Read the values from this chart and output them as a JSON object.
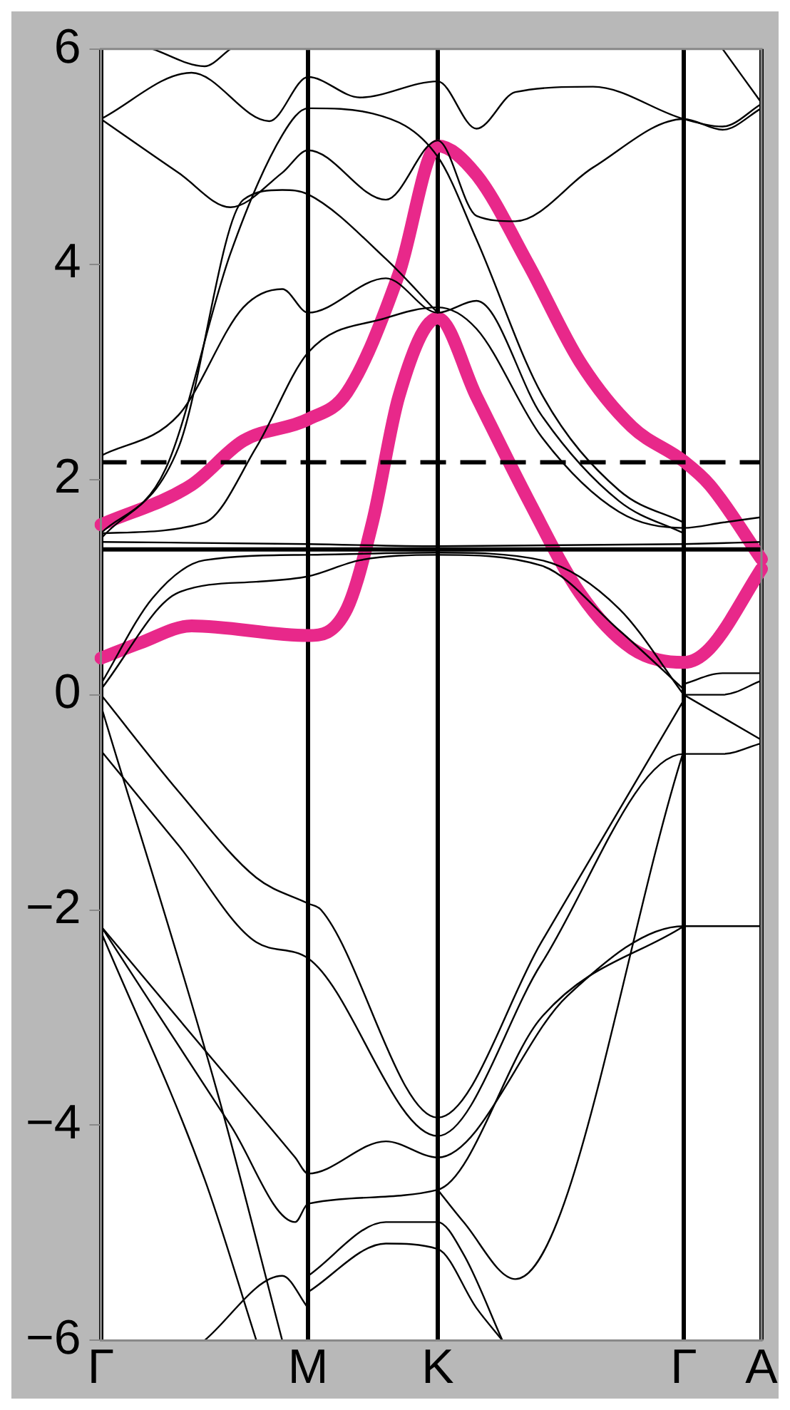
{
  "chart_data": {
    "type": "line",
    "categories": [
      "Γ",
      null,
      null,
      null,
      null,
      null,
      null,
      null,
      null,
      null,
      null,
      null,
      null,
      null,
      null,
      null,
      "M",
      null,
      null,
      null,
      null,
      null,
      null,
      null,
      null,
      null,
      "K",
      null,
      null,
      null,
      null,
      null,
      null,
      null,
      null,
      null,
      null,
      null,
      null,
      null,
      null,
      null,
      null,
      null,
      null,
      "Γ",
      null,
      null,
      null,
      null,
      null,
      "A"
    ],
    "ylim": [
      -6,
      6
    ],
    "yticks": [
      {
        "value": -6,
        "label": "−6"
      },
      {
        "value": -4,
        "label": "−4"
      },
      {
        "value": -2,
        "label": "−2"
      },
      0,
      2,
      4,
      6
    ],
    "grid": "x",
    "legend": false,
    "marker": "none",
    "line_style": "solid",
    "ref_lines": [
      {
        "axis": "y",
        "value": 2.16,
        "color": "#000000",
        "line_style": "dashed"
      },
      {
        "axis": "y",
        "value": 1.35,
        "color": "#000000",
        "line_style": "solid"
      }
    ],
    "series": [
      {
        "color": "#e8288a",
        "values": [
          1.58,
          null,
          null,
          null,
          null,
          null,
          null,
          1.95,
          null,
          null,
          null,
          2.36,
          null,
          null,
          null,
          null,
          2.56,
          null,
          null,
          2.81,
          null,
          null,
          null,
          3.91,
          null,
          null,
          5.1,
          null,
          null,
          4.83,
          null,
          null,
          null,
          4.0,
          null,
          null,
          null,
          3.09,
          null,
          null,
          null,
          2.49,
          null,
          null,
          null,
          2.17,
          null,
          1.95,
          null,
          null,
          null,
          1.26
        ]
      },
      {
        "color": "#e8288a",
        "values": [
          0.34,
          null,
          null,
          0.48,
          null,
          null,
          null,
          0.64,
          null,
          null,
          null,
          null,
          null,
          null,
          null,
          null,
          0.55,
          null,
          null,
          0.8,
          null,
          1.62,
          null,
          2.77,
          null,
          null,
          3.5,
          null,
          null,
          2.77,
          null,
          null,
          null,
          1.81,
          null,
          null,
          null,
          0.94,
          null,
          null,
          null,
          0.43,
          null,
          null,
          null,
          0.3,
          null,
          0.43,
          null,
          null,
          null,
          1.17
        ]
      },
      {
        "color": "#000000",
        "values": [
          5.35,
          null,
          null,
          null,
          null,
          null,
          4.85,
          null,
          null,
          null,
          4.53,
          null,
          null,
          null,
          4.85,
          null,
          5.06,
          null,
          null,
          null,
          null,
          null,
          4.6,
          null,
          null,
          null,
          5.15,
          null,
          null,
          4.45,
          null,
          null,
          4.4,
          null,
          null,
          null,
          null,
          null,
          4.9,
          null,
          null,
          null,
          null,
          null,
          null,
          5.35,
          null,
          null,
          5.25,
          null,
          null,
          5.45
        ]
      },
      {
        "color": "#000000",
        "values": [
          5.35,
          null,
          null,
          null,
          null,
          null,
          null,
          5.78,
          null,
          null,
          null,
          null,
          null,
          5.33,
          null,
          null,
          5.74,
          null,
          null,
          null,
          5.55,
          null,
          null,
          null,
          null,
          null,
          5.7,
          null,
          null,
          5.26,
          null,
          null,
          5.6,
          null,
          null,
          null,
          null,
          null,
          5.65,
          null,
          null,
          null,
          null,
          null,
          null,
          5.35,
          null,
          null,
          5.28,
          null,
          null,
          5.49
        ]
      },
      {
        "color": "#000000",
        "values": [
          null,
          null,
          null,
          null,
          6.0,
          null,
          null,
          null,
          5.84,
          null,
          6.0,
          null,
          null,
          null,
          null,
          null,
          null,
          null,
          null,
          null,
          null,
          null,
          null,
          null,
          null,
          null,
          null,
          null,
          null,
          null,
          null,
          null,
          null,
          null,
          null,
          null,
          null,
          null,
          null,
          null,
          null,
          null,
          null,
          null,
          null,
          null,
          null,
          null,
          null,
          null,
          null,
          null
        ]
      },
      {
        "color": "#000000",
        "values": [
          null,
          null,
          null,
          null,
          null,
          null,
          null,
          null,
          null,
          null,
          null,
          null,
          null,
          null,
          null,
          null,
          null,
          null,
          null,
          null,
          null,
          null,
          null,
          null,
          null,
          null,
          null,
          null,
          null,
          null,
          null,
          null,
          null,
          null,
          null,
          null,
          null,
          null,
          null,
          null,
          null,
          null,
          null,
          null,
          null,
          null,
          null,
          null,
          6.0,
          null,
          null,
          5.5
        ]
      },
      {
        "color": "#000000",
        "values": [
          2.22,
          null,
          null,
          null,
          null,
          null,
          2.6,
          null,
          null,
          null,
          null,
          3.6,
          null,
          null,
          3.77,
          null,
          3.55,
          null,
          null,
          null,
          null,
          null,
          3.87,
          null,
          null,
          null,
          3.55,
          null,
          null,
          3.66,
          null,
          null,
          null,
          null,
          2.6,
          null,
          null,
          null,
          null,
          null,
          1.8,
          null,
          null,
          null,
          null,
          1.5,
          null,
          null,
          null,
          null,
          null,
          null
        ]
      },
      {
        "color": "#000000",
        "values": [
          1.5,
          null,
          null,
          null,
          null,
          2.1,
          null,
          null,
          null,
          null,
          4.1,
          null,
          null,
          null,
          5.2,
          null,
          5.45,
          null,
          null,
          null,
          null,
          5.4,
          null,
          null,
          null,
          null,
          5.0,
          null,
          null,
          4.23,
          null,
          null,
          null,
          null,
          2.8,
          null,
          null,
          null,
          null,
          null,
          1.9,
          null,
          null,
          null,
          null,
          1.6,
          null,
          null,
          null,
          null,
          null,
          null
        ]
      },
      {
        "color": "#000000",
        "values": [
          1.45,
          null,
          null,
          null,
          null,
          null,
          2.3,
          null,
          null,
          null,
          null,
          4.6,
          null,
          null,
          4.69,
          null,
          4.65,
          null,
          null,
          null,
          null,
          null,
          4.05,
          null,
          null,
          null,
          3.55,
          null,
          null,
          null,
          null,
          null,
          null,
          null,
          null,
          null,
          null,
          null,
          null,
          null,
          null,
          null,
          null,
          null,
          null,
          null,
          null,
          null,
          null,
          null,
          null,
          null
        ]
      },
      {
        "color": "#000000",
        "values": [
          1.5,
          null,
          null,
          null,
          null,
          null,
          null,
          null,
          1.6,
          null,
          null,
          null,
          2.3,
          null,
          null,
          null,
          3.18,
          null,
          null,
          null,
          null,
          null,
          3.5,
          null,
          null,
          null,
          3.6,
          null,
          null,
          3.4,
          null,
          null,
          null,
          null,
          2.4,
          null,
          null,
          null,
          null,
          null,
          1.7,
          null,
          null,
          null,
          null,
          1.55,
          null,
          null,
          1.6,
          null,
          null,
          1.65
        ]
      },
      {
        "color": "#000000",
        "values": [
          1.42,
          null,
          null,
          null,
          null,
          null,
          null,
          null,
          null,
          null,
          null,
          null,
          null,
          null,
          null,
          null,
          1.4,
          null,
          null,
          null,
          null,
          null,
          null,
          null,
          null,
          null,
          1.38,
          null,
          null,
          null,
          null,
          null,
          null,
          null,
          null,
          null,
          null,
          null,
          null,
          null,
          null,
          null,
          null,
          null,
          null,
          1.4,
          null,
          null,
          null,
          null,
          null,
          1.42
        ]
      },
      {
        "color": "#000000",
        "values": [
          0.1,
          null,
          null,
          null,
          0.9,
          null,
          null,
          null,
          1.25,
          null,
          null,
          null,
          null,
          null,
          null,
          null,
          1.3,
          null,
          null,
          null,
          null,
          null,
          null,
          null,
          null,
          null,
          1.32,
          null,
          null,
          null,
          null,
          null,
          null,
          null,
          1.25,
          null,
          null,
          null,
          null,
          null,
          0.8,
          null,
          null,
          null,
          null,
          0.0,
          null,
          null,
          null,
          null,
          null,
          null
        ]
      },
      {
        "color": "#000000",
        "values": [
          0.05,
          null,
          null,
          null,
          null,
          null,
          0.95,
          null,
          null,
          null,
          null,
          null,
          1.05,
          null,
          null,
          null,
          1.1,
          null,
          null,
          null,
          1.25,
          null,
          null,
          null,
          null,
          null,
          1.3,
          null,
          null,
          null,
          null,
          null,
          null,
          null,
          1.2,
          null,
          null,
          null,
          null,
          null,
          0.6,
          null,
          null,
          null,
          null,
          0.05,
          null,
          null,
          null,
          null,
          null,
          null
        ]
      },
      {
        "color": "#000000",
        "values": [
          null,
          null,
          null,
          null,
          null,
          null,
          null,
          null,
          null,
          null,
          null,
          null,
          null,
          null,
          null,
          null,
          null,
          null,
          null,
          null,
          null,
          null,
          null,
          null,
          null,
          null,
          null,
          null,
          null,
          null,
          null,
          null,
          null,
          null,
          null,
          null,
          null,
          null,
          null,
          null,
          null,
          null,
          null,
          null,
          null,
          0.1,
          null,
          null,
          0.2,
          null,
          null,
          0.2
        ]
      },
      {
        "color": "#000000",
        "values": [
          null,
          null,
          null,
          null,
          null,
          null,
          null,
          null,
          null,
          null,
          null,
          null,
          null,
          null,
          null,
          null,
          null,
          null,
          null,
          null,
          null,
          null,
          null,
          null,
          null,
          null,
          null,
          null,
          null,
          null,
          null,
          null,
          null,
          null,
          null,
          null,
          null,
          null,
          null,
          null,
          null,
          null,
          null,
          null,
          null,
          0.0,
          null,
          null,
          0.0,
          null,
          null,
          0.13
        ]
      },
      {
        "color": "#000000",
        "values": [
          null,
          null,
          null,
          null,
          null,
          null,
          null,
          null,
          null,
          null,
          null,
          null,
          null,
          null,
          null,
          null,
          null,
          null,
          null,
          null,
          null,
          null,
          null,
          null,
          null,
          null,
          null,
          null,
          null,
          null,
          null,
          null,
          null,
          null,
          null,
          null,
          null,
          null,
          null,
          null,
          null,
          null,
          null,
          null,
          null,
          0.0,
          null,
          null,
          null,
          null,
          null,
          -0.42
        ]
      },
      {
        "color": "#000000",
        "values": [
          0.0,
          null,
          null,
          null,
          null,
          null,
          -0.9,
          null,
          null,
          null,
          null,
          null,
          -1.7,
          null,
          null,
          null,
          -1.94,
          -2.0,
          null,
          null,
          null,
          null,
          null,
          null,
          null,
          null,
          -3.93,
          null,
          null,
          null,
          null,
          null,
          null,
          null,
          -2.3,
          null,
          null,
          null,
          null,
          null,
          null,
          null,
          null,
          null,
          null,
          -0.05,
          null,
          null,
          null,
          null,
          null,
          null
        ]
      },
      {
        "color": "#000000",
        "values": [
          -0.52,
          null,
          null,
          null,
          null,
          null,
          -1.4,
          null,
          null,
          null,
          null,
          null,
          -2.3,
          null,
          null,
          null,
          -2.45,
          null,
          null,
          null,
          null,
          null,
          null,
          null,
          null,
          null,
          -4.1,
          null,
          null,
          null,
          null,
          null,
          null,
          null,
          -2.5,
          null,
          null,
          null,
          null,
          null,
          null,
          null,
          null,
          null,
          null,
          -0.55,
          null,
          null,
          -0.55,
          null,
          null,
          -0.45
        ]
      },
      {
        "color": "#000000",
        "values": [
          -2.15,
          null,
          null,
          null,
          null,
          null,
          null,
          null,
          -3.3,
          null,
          null,
          null,
          null,
          null,
          null,
          -4.3,
          -4.45,
          null,
          null,
          null,
          null,
          null,
          -4.15,
          null,
          null,
          null,
          -4.3,
          null,
          null,
          null,
          null,
          null,
          null,
          null,
          null,
          null,
          -2.8,
          null,
          null,
          null,
          null,
          null,
          null,
          null,
          null,
          -2.15,
          null,
          null,
          null,
          null,
          null,
          -2.15
        ]
      },
      {
        "color": "#000000",
        "values": [
          -2.15,
          null,
          null,
          null,
          null,
          null,
          null,
          null,
          null,
          null,
          -4.0,
          null,
          null,
          null,
          null,
          -4.9,
          -4.73,
          null,
          null,
          null,
          null,
          null,
          null,
          null,
          null,
          null,
          -4.6,
          null,
          null,
          null,
          null,
          null,
          null,
          null,
          -3.0,
          null,
          null,
          null,
          null,
          null,
          null,
          null,
          null,
          null,
          null,
          -2.15,
          null,
          null,
          null,
          null,
          null,
          null
        ]
      },
      {
        "color": "#000000",
        "values": [
          -0.1,
          null,
          null,
          null,
          null,
          null,
          null,
          null,
          null,
          -3.7,
          null,
          null,
          null,
          null,
          -6.0,
          null,
          null,
          null,
          null,
          null,
          null,
          null,
          null,
          null,
          null,
          null,
          null,
          null,
          null,
          null,
          null,
          null,
          null,
          null,
          null,
          null,
          null,
          null,
          null,
          null,
          null,
          null,
          null,
          null,
          null,
          null,
          null,
          null,
          null,
          null,
          null,
          null
        ]
      },
      {
        "color": "#000000",
        "values": [
          -2.2,
          null,
          null,
          null,
          null,
          null,
          null,
          null,
          -4.5,
          null,
          null,
          null,
          -6.0,
          null,
          null,
          null,
          null,
          null,
          null,
          null,
          null,
          null,
          null,
          null,
          null,
          null,
          null,
          null,
          null,
          null,
          null,
          null,
          null,
          null,
          null,
          null,
          null,
          null,
          null,
          null,
          null,
          null,
          null,
          null,
          null,
          null,
          null,
          null,
          null,
          null,
          null,
          null
        ]
      },
      {
        "color": "#000000",
        "values": [
          null,
          null,
          null,
          null,
          null,
          null,
          null,
          null,
          null,
          null,
          null,
          null,
          null,
          null,
          null,
          null,
          -5.4,
          null,
          null,
          null,
          null,
          null,
          -4.9,
          null,
          null,
          null,
          -4.9,
          null,
          -5.2,
          null,
          null,
          -6.0,
          null,
          null,
          null,
          null,
          null,
          null,
          null,
          null,
          null,
          null,
          null,
          null,
          null,
          null,
          null,
          null,
          null,
          null,
          null,
          null
        ]
      },
      {
        "color": "#000000",
        "values": [
          null,
          null,
          null,
          null,
          null,
          null,
          null,
          null,
          null,
          null,
          null,
          null,
          null,
          null,
          null,
          null,
          -5.55,
          null,
          null,
          null,
          null,
          null,
          -5.1,
          null,
          null,
          null,
          -5.15,
          null,
          null,
          -5.7,
          null,
          -6.0,
          null,
          null,
          null,
          null,
          null,
          null,
          null,
          null,
          null,
          null,
          null,
          null,
          null,
          null,
          null,
          null,
          null,
          null,
          null,
          null
        ]
      },
      {
        "color": "#000000",
        "values": [
          null,
          null,
          null,
          null,
          null,
          null,
          null,
          null,
          null,
          null,
          null,
          null,
          null,
          null,
          null,
          null,
          null,
          null,
          null,
          null,
          null,
          null,
          null,
          null,
          null,
          null,
          -4.6,
          null,
          -4.9,
          null,
          null,
          null,
          -5.43,
          null,
          null,
          null,
          null,
          null,
          null,
          null,
          null,
          null,
          null,
          null,
          null,
          -0.52,
          null,
          null,
          null,
          null,
          null,
          null
        ]
      },
      {
        "color": "#000000",
        "values": [
          null,
          null,
          null,
          null,
          null,
          null,
          null,
          null,
          -6.0,
          null,
          null,
          null,
          null,
          null,
          -5.4,
          null,
          -5.7,
          null,
          null,
          null,
          null,
          null,
          null,
          null,
          null,
          null,
          null,
          null,
          null,
          null,
          null,
          null,
          null,
          null,
          null,
          null,
          null,
          null,
          null,
          null,
          null,
          null,
          null,
          null,
          null,
          null,
          null,
          null,
          null,
          null,
          null,
          null
        ]
      }
    ]
  }
}
